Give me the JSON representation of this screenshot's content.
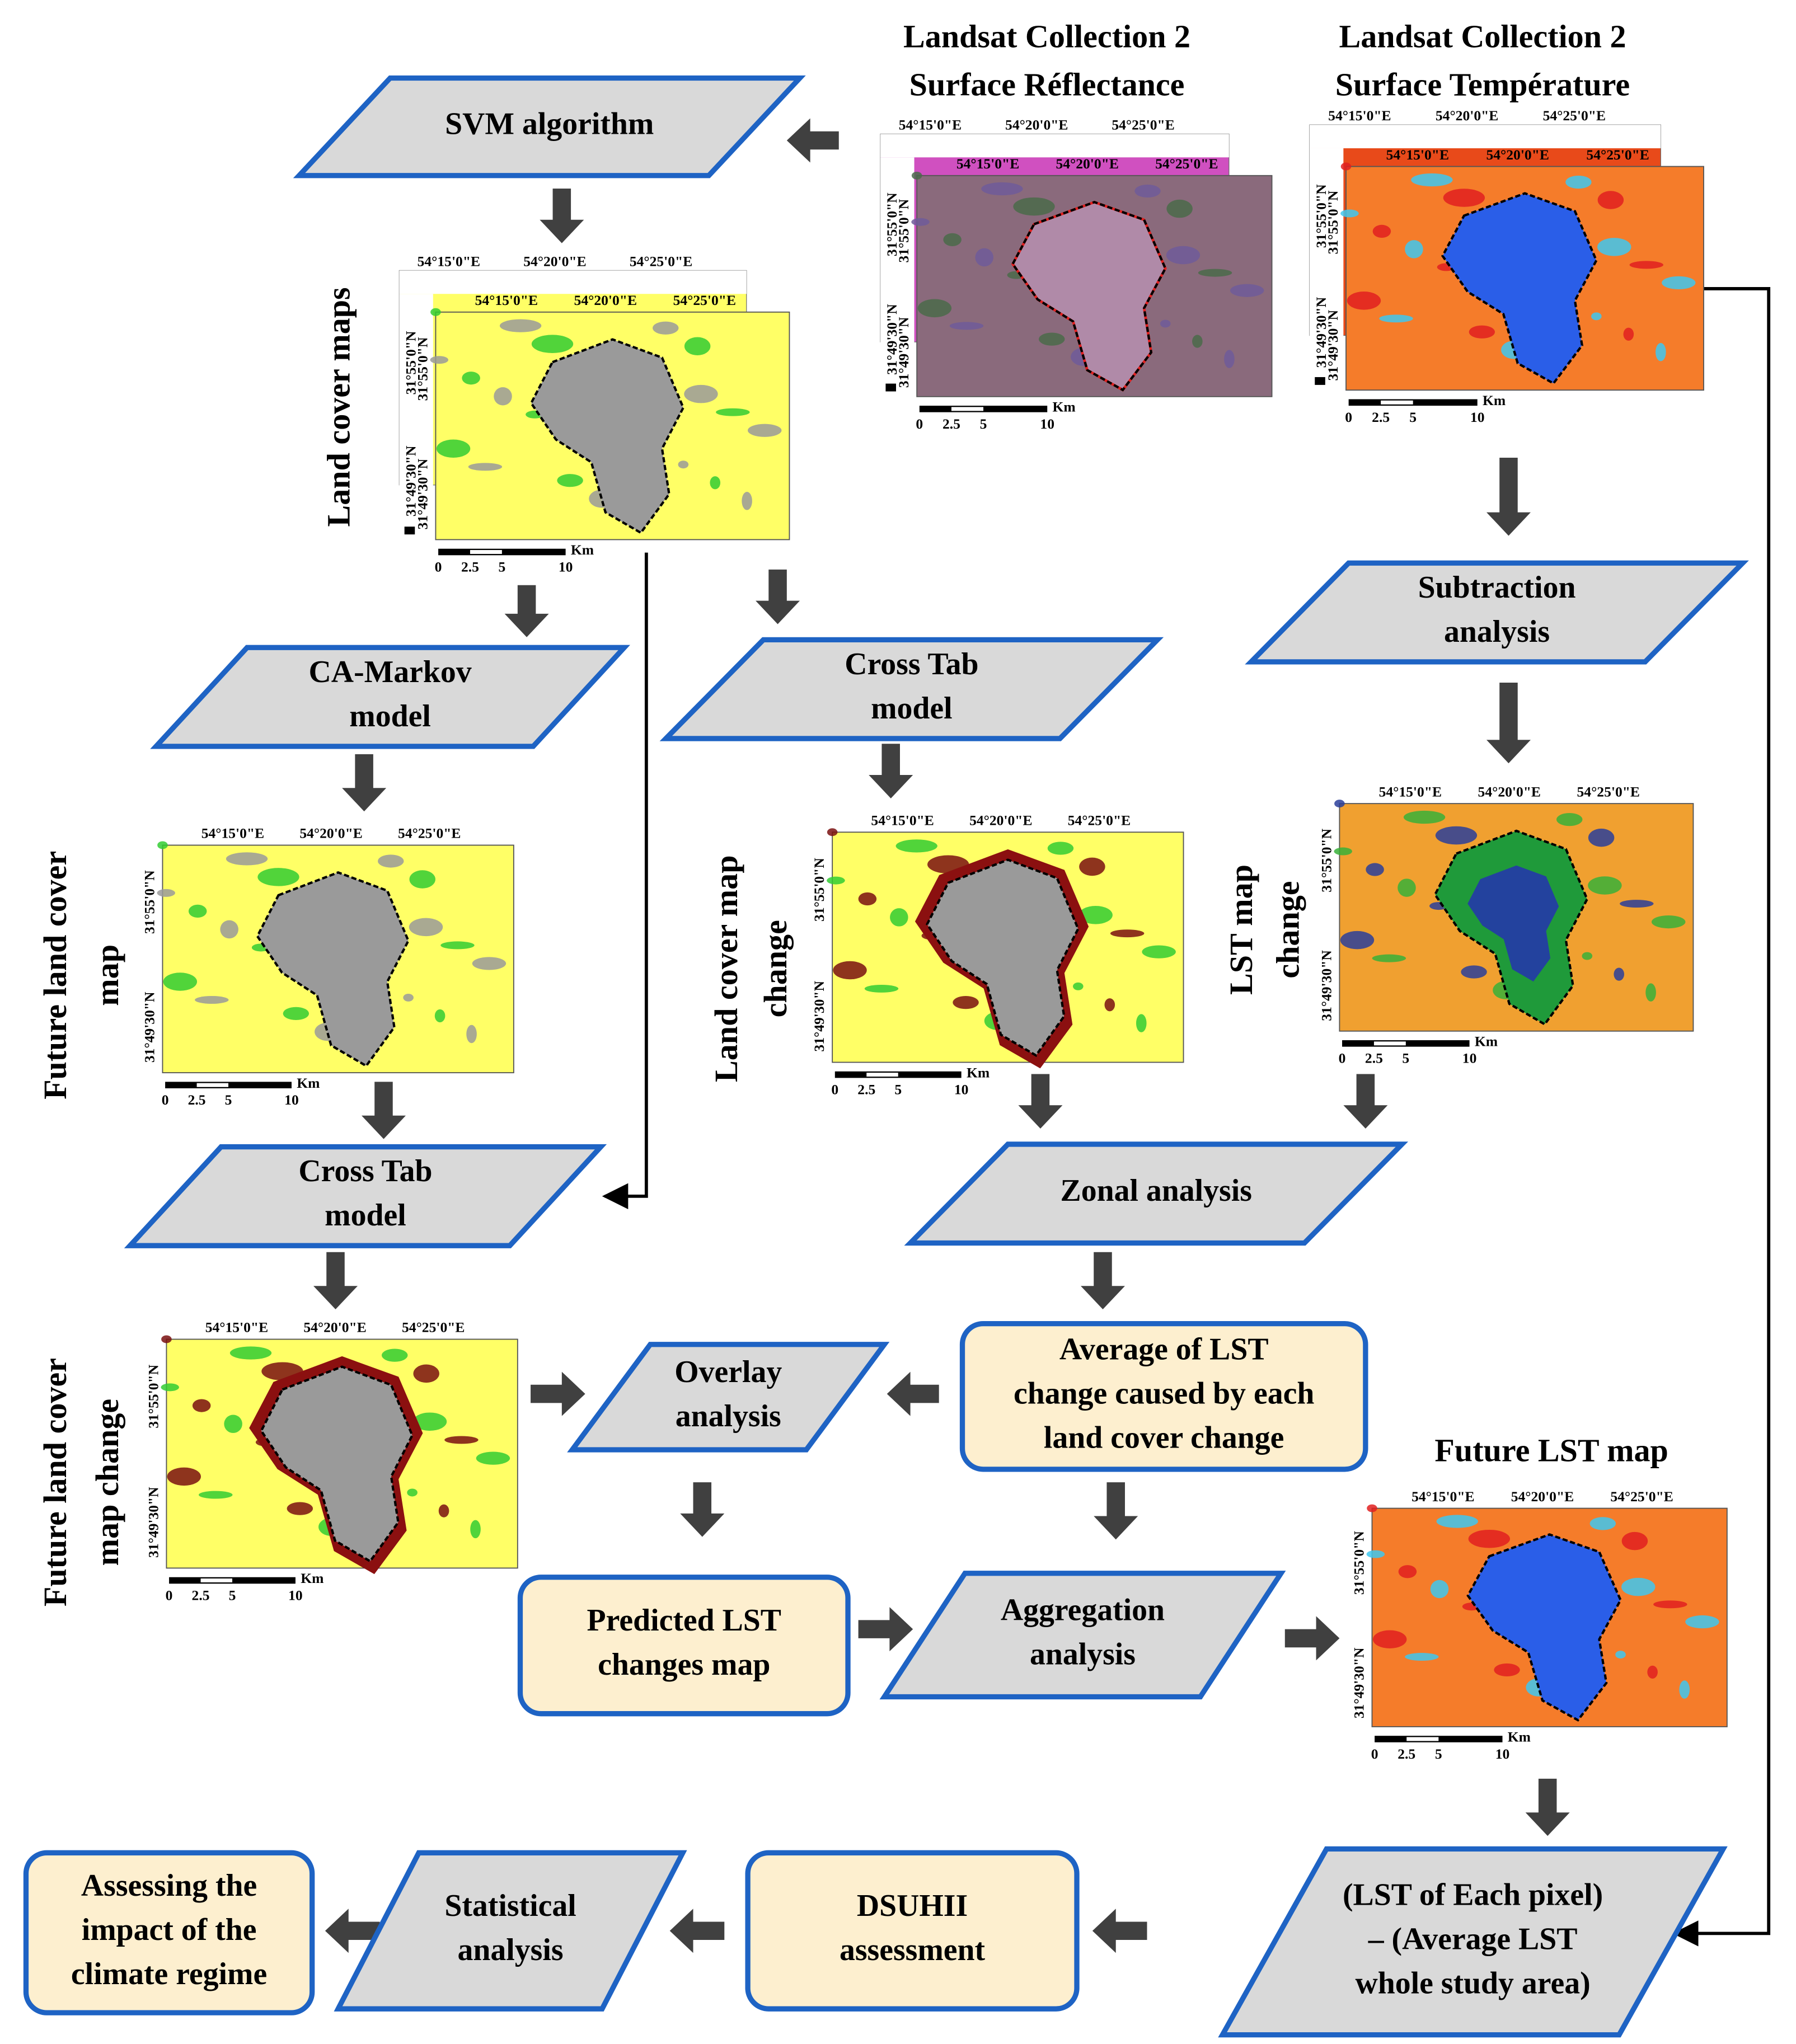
{
  "headers": [
    {
      "lines": [
        "Landsat Collection 2",
        "Surface Réflectance"
      ]
    },
    {
      "lines": [
        "Landsat Collection 2",
        "Surface Température"
      ]
    },
    {
      "lines": [
        "Future LST map"
      ]
    }
  ],
  "side_labels": [
    {
      "lines": [
        "Land cover maps"
      ]
    },
    {
      "lines": [
        "Future land cover",
        "map"
      ]
    },
    {
      "lines": [
        "Land cover map",
        "change"
      ]
    },
    {
      "lines": [
        "LST map",
        "change"
      ]
    },
    {
      "lines": [
        "Future land cover",
        "map change"
      ]
    }
  ],
  "nodes": [
    {
      "lines": [
        "SVM algorithm"
      ]
    },
    {
      "lines": [
        "CA-Markov",
        "model"
      ]
    },
    {
      "lines": [
        "Cross Tab",
        "model"
      ]
    },
    {
      "lines": [
        "Subtraction",
        "analysis"
      ]
    },
    {
      "lines": [
        "Cross Tab",
        "model"
      ]
    },
    {
      "lines": [
        "Zonal analysis"
      ]
    },
    {
      "lines": [
        "Overlay",
        "analysis"
      ]
    },
    {
      "lines": [
        "Average of LST",
        "change caused by each",
        "land cover change"
      ]
    },
    {
      "lines": [
        "Predicted LST",
        "changes map"
      ]
    },
    {
      "lines": [
        "Aggregation",
        "analysis"
      ]
    },
    {
      "lines": [
        "(LST of Each pixel)",
        "– (Average LST",
        "whole study area)"
      ]
    },
    {
      "lines": [
        "DSUHII",
        "assessment"
      ]
    },
    {
      "lines": [
        "Statistical",
        "analysis"
      ]
    },
    {
      "lines": [
        "Assessing the",
        "impact of the",
        "climate regime"
      ]
    }
  ],
  "map_labels": {
    "lon": [
      "54°15'0\"E",
      "54°20'0\"E",
      "54°25'0\"E"
    ],
    "lat": [
      "31°55'0\"N",
      "31°49'30\"N"
    ],
    "scale": [
      "0",
      "2.5",
      "5",
      "10"
    ],
    "unit": "Km"
  }
}
